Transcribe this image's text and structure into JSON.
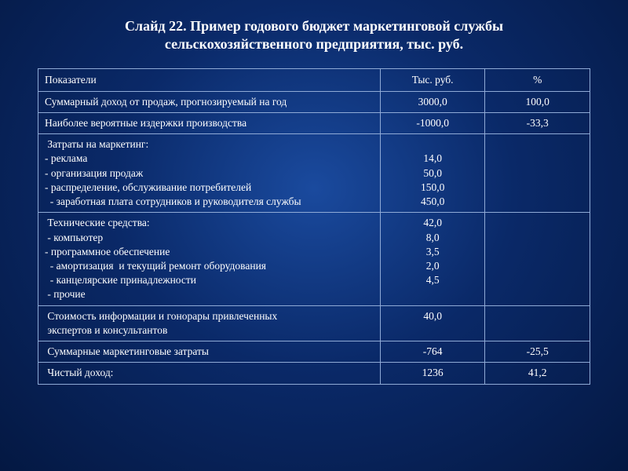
{
  "title_line1": "Слайд 22. Пример годового бюджет  маркетинговой службы",
  "title_line2": "сельскохозяйственного предприятия, тыс. руб.",
  "table": {
    "columns": [
      "Показатели",
      "Тыс. руб.",
      "%"
    ],
    "col_align": [
      "left",
      "center",
      "center"
    ],
    "border_color": "#8faad6",
    "text_color": "#ffffff",
    "font_family": "Times New Roman",
    "font_size_pt": 10,
    "rows": [
      {
        "indicator": [
          "Суммарный доход от продаж, прогнозируемый на год"
        ],
        "value": [
          "3000,0"
        ],
        "percent": [
          "100,0"
        ]
      },
      {
        "indicator": [
          "Наиболее вероятные издержки производства"
        ],
        "value": [
          "-1000,0"
        ],
        "percent": [
          "-33,3"
        ]
      },
      {
        "indicator": [
          " Затраты на маркетинг:",
          "- реклама",
          "- организация продаж",
          "- распределение, обслуживание потребителей",
          "  - заработная плата сотрудников и руководителя службы"
        ],
        "value": [
          "",
          "14,0",
          "50,0",
          "150,0",
          "450,0"
        ],
        "percent": []
      },
      {
        "indicator": [
          " Технические средства:",
          " - компьютер",
          "- программное обеспечение",
          "  - амортизация  и текущий ремонт оборудования",
          "  - канцелярские принадлежности",
          " - прочие"
        ],
        "value": [
          "42,0",
          "8,0",
          "3,5",
          "2,0",
          "4,5",
          ""
        ],
        "percent": []
      },
      {
        "indicator": [
          " Стоимость информации и гонорары привлеченных",
          " экспертов и консультантов"
        ],
        "value": [
          "40,0"
        ],
        "percent": []
      },
      {
        "indicator": [
          " Суммарные маркетинговые затраты"
        ],
        "value": [
          "-764"
        ],
        "percent": [
          "-25,5"
        ]
      },
      {
        "indicator": [
          " Чистый доход:"
        ],
        "value": [
          "1236"
        ],
        "percent": [
          "41,2"
        ]
      }
    ]
  },
  "background": {
    "type": "radial-gradient",
    "center_color": "#1a4a9e",
    "mid_color": "#0a2968",
    "edge_color": "#041842"
  }
}
